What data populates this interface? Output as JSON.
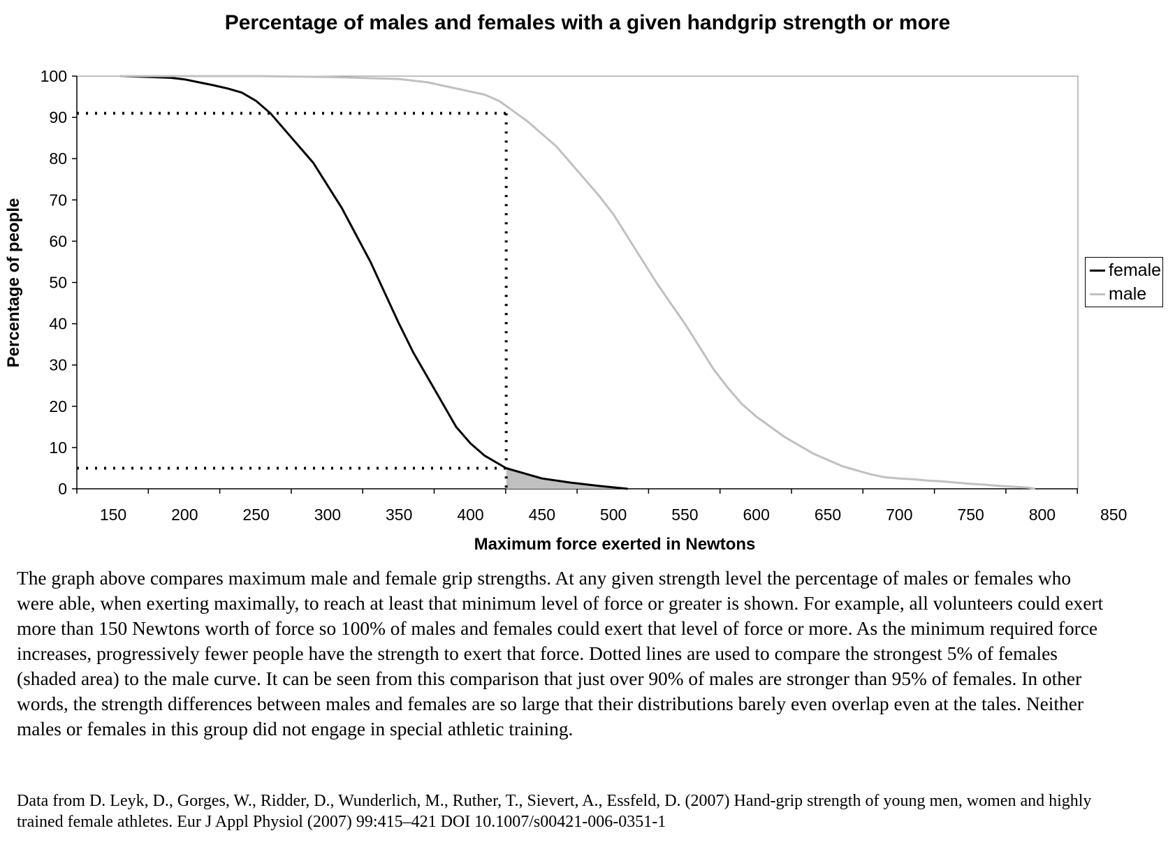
{
  "caption": "The graph above compares maximum male and female grip strengths. At any given strength level the percentage of males or females who were able, when exerting maximally, to reach at least that minimum level of force or greater is shown. For example, all volunteers could exert more than 150 Newtons worth of force so 100% of males and females could exert that level of force or more. As the minimum required force increases, progressively fewer people have the strength to exert that force.  Dotted lines are used to compare the strongest 5% of females (shaded area)  to the male curve. It can be seen from this comparison that just over 90% of males are stronger than 95% of females. In other words, the strength differences between males and females are so large that their distributions barely even overlap even at the tales. Neither males or females in this group did not engage in special athletic training.",
  "source": "Data from D. Leyk, D., Gorges, W., Ridder, D., Wunderlich, M., Ruther, T., Sievert, A., Essfeld, D. (2007) Hand-grip strength of young men, women and highly trained female athletes. Eur J Appl Physiol (2007) 99:415–421 DOI 10.1007/s00421-006-0351-1",
  "chart_data": {
    "type": "line",
    "title": "Percentage of males and females with a given handgrip strength or more",
    "xlabel": "Maximum force exerted in Newtons",
    "ylabel": "Percentage of people",
    "xlim": [
      125,
      825
    ],
    "ylim": [
      0,
      100
    ],
    "x_ticks": [
      150,
      200,
      250,
      300,
      350,
      400,
      450,
      500,
      550,
      600,
      650,
      700,
      750,
      800,
      850
    ],
    "y_ticks": [
      0,
      10,
      20,
      30,
      40,
      50,
      60,
      70,
      80,
      90,
      100
    ],
    "grid": false,
    "legend_position": "right",
    "series": [
      {
        "name": "female",
        "color": "#000000",
        "points": [
          [
            155,
            100
          ],
          [
            175,
            99.8
          ],
          [
            190,
            99.6
          ],
          [
            200,
            99.2
          ],
          [
            210,
            98.5
          ],
          [
            220,
            97.8
          ],
          [
            230,
            97
          ],
          [
            240,
            96
          ],
          [
            250,
            94
          ],
          [
            260,
            91
          ],
          [
            270,
            87
          ],
          [
            280,
            83
          ],
          [
            290,
            79
          ],
          [
            300,
            73.5
          ],
          [
            310,
            68
          ],
          [
            320,
            61.5
          ],
          [
            330,
            55
          ],
          [
            340,
            47.5
          ],
          [
            350,
            40
          ],
          [
            360,
            33
          ],
          [
            370,
            27
          ],
          [
            380,
            21
          ],
          [
            390,
            15
          ],
          [
            400,
            11
          ],
          [
            410,
            8
          ],
          [
            425,
            5
          ],
          [
            440,
            3.5
          ],
          [
            450,
            2.5
          ],
          [
            470,
            1.5
          ],
          [
            490,
            0.7
          ],
          [
            510,
            0
          ]
        ]
      },
      {
        "name": "male",
        "color": "#c0c0c0",
        "points": [
          [
            155,
            100
          ],
          [
            200,
            100
          ],
          [
            250,
            100
          ],
          [
            300,
            99.8
          ],
          [
            330,
            99.5
          ],
          [
            350,
            99.3
          ],
          [
            370,
            98.5
          ],
          [
            390,
            97
          ],
          [
            410,
            95.5
          ],
          [
            420,
            94
          ],
          [
            430,
            91.5
          ],
          [
            440,
            89
          ],
          [
            450,
            86
          ],
          [
            460,
            83
          ],
          [
            470,
            79
          ],
          [
            480,
            75
          ],
          [
            490,
            71
          ],
          [
            500,
            66.5
          ],
          [
            510,
            61
          ],
          [
            520,
            55.5
          ],
          [
            530,
            50
          ],
          [
            540,
            45
          ],
          [
            550,
            40
          ],
          [
            560,
            34.5
          ],
          [
            570,
            29
          ],
          [
            580,
            24.5
          ],
          [
            590,
            20.5
          ],
          [
            600,
            17.5
          ],
          [
            610,
            15
          ],
          [
            620,
            12.5
          ],
          [
            630,
            10.5
          ],
          [
            640,
            8.5
          ],
          [
            650,
            7
          ],
          [
            660,
            5.5
          ],
          [
            670,
            4.5
          ],
          [
            680,
            3.5
          ],
          [
            690,
            2.8
          ],
          [
            700,
            2.5
          ],
          [
            710,
            2.3
          ],
          [
            720,
            2
          ],
          [
            730,
            1.8
          ],
          [
            740,
            1.5
          ],
          [
            750,
            1.2
          ],
          [
            760,
            1
          ],
          [
            770,
            0.7
          ],
          [
            780,
            0.5
          ],
          [
            790,
            0.3
          ],
          [
            795,
            0
          ]
        ]
      }
    ],
    "reference_lines": [
      {
        "type": "horizontal",
        "y": 91,
        "x_end": 425,
        "style": "dotted"
      },
      {
        "type": "horizontal",
        "y": 5,
        "x_end": 425,
        "style": "dotted"
      },
      {
        "type": "vertical",
        "x": 425,
        "y_end": 91,
        "style": "dotted"
      }
    ],
    "shaded_region": {
      "series": "female",
      "x_start": 425,
      "x_end": 510,
      "color": "#c0c0c0"
    }
  }
}
